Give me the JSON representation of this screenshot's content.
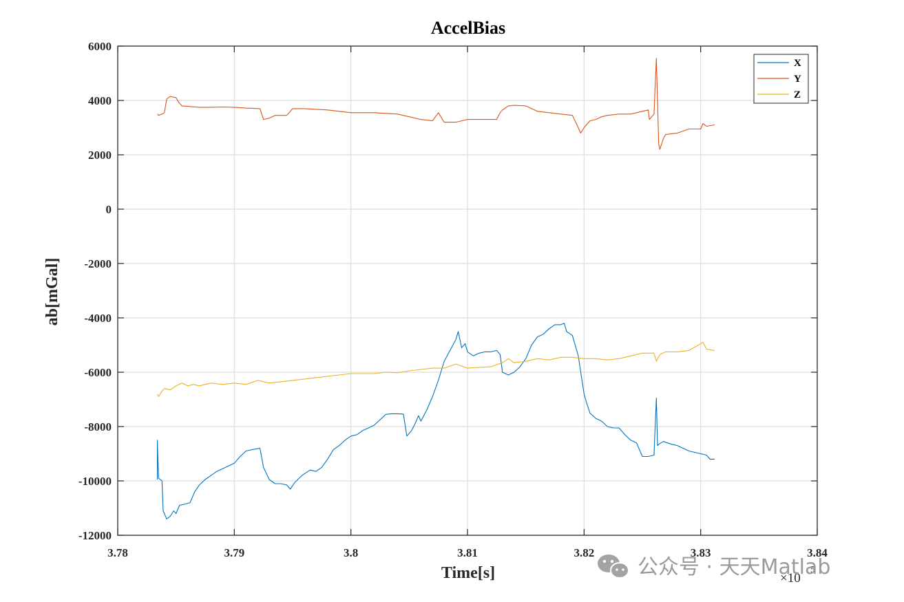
{
  "chart_data": {
    "type": "line",
    "title": "AccelBias",
    "xlabel": "Time[s]",
    "ylabel": "ab[mGal]",
    "x_exponent_label": "×10",
    "x_exponent_power": "5",
    "xlim": [
      3.78,
      3.84
    ],
    "ylim": [
      -12000,
      6000
    ],
    "xticks": [
      3.78,
      3.79,
      3.8,
      3.81,
      3.82,
      3.83,
      3.84
    ],
    "xtick_labels": [
      "3.78",
      "3.79",
      "3.8",
      "3.81",
      "3.82",
      "3.83",
      "3.84"
    ],
    "yticks": [
      6000,
      4000,
      2000,
      0,
      -2000,
      -4000,
      -6000,
      -8000,
      -10000,
      -12000
    ],
    "ytick_labels": [
      "6000",
      "4000",
      "2000",
      "0",
      "-2000",
      "-4000",
      "-6000",
      "-8000",
      "-10000",
      "-12000"
    ],
    "grid": true,
    "legend_position": "top-right",
    "series": [
      {
        "name": "X",
        "color": "#0072BD",
        "points": [
          [
            3.7834,
            -9950
          ],
          [
            3.7834,
            -8500
          ],
          [
            3.7835,
            -9900
          ],
          [
            3.7838,
            -10000
          ],
          [
            3.7839,
            -11100
          ],
          [
            3.7842,
            -11400
          ],
          [
            3.7845,
            -11300
          ],
          [
            3.7848,
            -11100
          ],
          [
            3.785,
            -11200
          ],
          [
            3.7853,
            -10900
          ],
          [
            3.7858,
            -10850
          ],
          [
            3.7862,
            -10800
          ],
          [
            3.7866,
            -10400
          ],
          [
            3.787,
            -10150
          ],
          [
            3.7875,
            -9950
          ],
          [
            3.788,
            -9800
          ],
          [
            3.7885,
            -9650
          ],
          [
            3.789,
            -9550
          ],
          [
            3.7895,
            -9450
          ],
          [
            3.79,
            -9350
          ],
          [
            3.7905,
            -9100
          ],
          [
            3.791,
            -8900
          ],
          [
            3.7915,
            -8850
          ],
          [
            3.7922,
            -8800
          ],
          [
            3.7925,
            -9500
          ],
          [
            3.793,
            -9950
          ],
          [
            3.7935,
            -10100
          ],
          [
            3.794,
            -10100
          ],
          [
            3.7945,
            -10150
          ],
          [
            3.7948,
            -10300
          ],
          [
            3.7952,
            -10050
          ],
          [
            3.7958,
            -9800
          ],
          [
            3.7965,
            -9600
          ],
          [
            3.797,
            -9650
          ],
          [
            3.7975,
            -9500
          ],
          [
            3.798,
            -9200
          ],
          [
            3.7985,
            -8850
          ],
          [
            3.799,
            -8700
          ],
          [
            3.7995,
            -8500
          ],
          [
            3.8,
            -8350
          ],
          [
            3.8005,
            -8300
          ],
          [
            3.801,
            -8150
          ],
          [
            3.8015,
            -8050
          ],
          [
            3.802,
            -7950
          ],
          [
            3.8025,
            -7750
          ],
          [
            3.803,
            -7550
          ],
          [
            3.8035,
            -7530
          ],
          [
            3.804,
            -7530
          ],
          [
            3.8045,
            -7540
          ],
          [
            3.8048,
            -8350
          ],
          [
            3.8052,
            -8150
          ],
          [
            3.8055,
            -7900
          ],
          [
            3.8058,
            -7600
          ],
          [
            3.806,
            -7800
          ],
          [
            3.8065,
            -7400
          ],
          [
            3.807,
            -6900
          ],
          [
            3.8075,
            -6300
          ],
          [
            3.808,
            -5600
          ],
          [
            3.8085,
            -5200
          ],
          [
            3.809,
            -4800
          ],
          [
            3.8092,
            -4500
          ],
          [
            3.8095,
            -5100
          ],
          [
            3.8098,
            -4950
          ],
          [
            3.81,
            -5250
          ],
          [
            3.8105,
            -5400
          ],
          [
            3.811,
            -5300
          ],
          [
            3.8115,
            -5250
          ],
          [
            3.812,
            -5250
          ],
          [
            3.8125,
            -5200
          ],
          [
            3.8128,
            -5350
          ],
          [
            3.813,
            -6000
          ],
          [
            3.8135,
            -6100
          ],
          [
            3.814,
            -6000
          ],
          [
            3.8145,
            -5800
          ],
          [
            3.815,
            -5500
          ],
          [
            3.8155,
            -5000
          ],
          [
            3.816,
            -4700
          ],
          [
            3.8165,
            -4600
          ],
          [
            3.817,
            -4400
          ],
          [
            3.8175,
            -4250
          ],
          [
            3.818,
            -4250
          ],
          [
            3.8183,
            -4200
          ],
          [
            3.8185,
            -4500
          ],
          [
            3.819,
            -4650
          ],
          [
            3.8195,
            -5400
          ],
          [
            3.82,
            -6800
          ],
          [
            3.8202,
            -7100
          ],
          [
            3.8205,
            -7500
          ],
          [
            3.821,
            -7700
          ],
          [
            3.8215,
            -7800
          ],
          [
            3.822,
            -8000
          ],
          [
            3.8225,
            -8050
          ],
          [
            3.823,
            -8050
          ],
          [
            3.8235,
            -8300
          ],
          [
            3.824,
            -8500
          ],
          [
            3.8245,
            -8600
          ],
          [
            3.825,
            -9100
          ],
          [
            3.8255,
            -9100
          ],
          [
            3.826,
            -9050
          ],
          [
            3.8262,
            -6950
          ],
          [
            3.8263,
            -8700
          ],
          [
            3.8264,
            -8650
          ],
          [
            3.8268,
            -8550
          ],
          [
            3.8275,
            -8650
          ],
          [
            3.828,
            -8700
          ],
          [
            3.8285,
            -8800
          ],
          [
            3.829,
            -8900
          ],
          [
            3.8295,
            -8950
          ],
          [
            3.83,
            -9000
          ],
          [
            3.8305,
            -9050
          ],
          [
            3.8308,
            -9200
          ],
          [
            3.8312,
            -9200
          ]
        ]
      },
      {
        "name": "Y",
        "color": "#D95319",
        "points": [
          [
            3.7834,
            3500
          ],
          [
            3.7835,
            3450
          ],
          [
            3.7838,
            3500
          ],
          [
            3.784,
            3550
          ],
          [
            3.7842,
            4050
          ],
          [
            3.7845,
            4150
          ],
          [
            3.785,
            4100
          ],
          [
            3.7852,
            3950
          ],
          [
            3.7855,
            3800
          ],
          [
            3.787,
            3750
          ],
          [
            3.788,
            3750
          ],
          [
            3.789,
            3760
          ],
          [
            3.79,
            3750
          ],
          [
            3.791,
            3720
          ],
          [
            3.7922,
            3700
          ],
          [
            3.7925,
            3300
          ],
          [
            3.793,
            3350
          ],
          [
            3.7935,
            3450
          ],
          [
            3.794,
            3450
          ],
          [
            3.7945,
            3450
          ],
          [
            3.795,
            3700
          ],
          [
            3.796,
            3700
          ],
          [
            3.798,
            3650
          ],
          [
            3.799,
            3600
          ],
          [
            3.8,
            3550
          ],
          [
            3.802,
            3550
          ],
          [
            3.804,
            3500
          ],
          [
            3.805,
            3400
          ],
          [
            3.806,
            3300
          ],
          [
            3.807,
            3250
          ],
          [
            3.8075,
            3550
          ],
          [
            3.808,
            3200
          ],
          [
            3.809,
            3200
          ],
          [
            3.8095,
            3250
          ],
          [
            3.81,
            3300
          ],
          [
            3.811,
            3300
          ],
          [
            3.812,
            3300
          ],
          [
            3.8125,
            3300
          ],
          [
            3.8128,
            3550
          ],
          [
            3.813,
            3650
          ],
          [
            3.8135,
            3800
          ],
          [
            3.814,
            3820
          ],
          [
            3.815,
            3800
          ],
          [
            3.816,
            3600
          ],
          [
            3.817,
            3550
          ],
          [
            3.818,
            3500
          ],
          [
            3.819,
            3450
          ],
          [
            3.8195,
            3000
          ],
          [
            3.8197,
            2800
          ],
          [
            3.82,
            3000
          ],
          [
            3.8205,
            3250
          ],
          [
            3.821,
            3300
          ],
          [
            3.8215,
            3400
          ],
          [
            3.822,
            3450
          ],
          [
            3.823,
            3500
          ],
          [
            3.824,
            3500
          ],
          [
            3.825,
            3600
          ],
          [
            3.8255,
            3650
          ],
          [
            3.8256,
            3300
          ],
          [
            3.826,
            3500
          ],
          [
            3.8262,
            5550
          ],
          [
            3.8263,
            4000
          ],
          [
            3.8264,
            2400
          ],
          [
            3.8265,
            2200
          ],
          [
            3.8268,
            2600
          ],
          [
            3.827,
            2750
          ],
          [
            3.828,
            2800
          ],
          [
            3.829,
            2950
          ],
          [
            3.83,
            2950
          ],
          [
            3.8302,
            3150
          ],
          [
            3.8305,
            3050
          ],
          [
            3.8312,
            3100
          ]
        ]
      },
      {
        "name": "Z",
        "color": "#EDB120",
        "points": [
          [
            3.7834,
            -6800
          ],
          [
            3.7835,
            -6900
          ],
          [
            3.7838,
            -6700
          ],
          [
            3.784,
            -6600
          ],
          [
            3.7845,
            -6650
          ],
          [
            3.785,
            -6500
          ],
          [
            3.7855,
            -6400
          ],
          [
            3.786,
            -6500
          ],
          [
            3.7865,
            -6450
          ],
          [
            3.787,
            -6500
          ],
          [
            3.7875,
            -6450
          ],
          [
            3.788,
            -6400
          ],
          [
            3.789,
            -6450
          ],
          [
            3.79,
            -6400
          ],
          [
            3.791,
            -6450
          ],
          [
            3.792,
            -6300
          ],
          [
            3.793,
            -6400
          ],
          [
            3.794,
            -6350
          ],
          [
            3.795,
            -6300
          ],
          [
            3.796,
            -6250
          ],
          [
            3.797,
            -6200
          ],
          [
            3.798,
            -6150
          ],
          [
            3.799,
            -6100
          ],
          [
            3.8,
            -6050
          ],
          [
            3.801,
            -6050
          ],
          [
            3.802,
            -6050
          ],
          [
            3.803,
            -6000
          ],
          [
            3.804,
            -6020
          ],
          [
            3.805,
            -5950
          ],
          [
            3.806,
            -5900
          ],
          [
            3.807,
            -5850
          ],
          [
            3.808,
            -5850
          ],
          [
            3.809,
            -5700
          ],
          [
            3.81,
            -5850
          ],
          [
            3.811,
            -5820
          ],
          [
            3.812,
            -5800
          ],
          [
            3.813,
            -5650
          ],
          [
            3.8135,
            -5500
          ],
          [
            3.814,
            -5650
          ],
          [
            3.815,
            -5600
          ],
          [
            3.816,
            -5500
          ],
          [
            3.817,
            -5550
          ],
          [
            3.818,
            -5450
          ],
          [
            3.819,
            -5450
          ],
          [
            3.82,
            -5500
          ],
          [
            3.821,
            -5500
          ],
          [
            3.822,
            -5550
          ],
          [
            3.823,
            -5500
          ],
          [
            3.824,
            -5400
          ],
          [
            3.825,
            -5300
          ],
          [
            3.826,
            -5300
          ],
          [
            3.8262,
            -5600
          ],
          [
            3.8265,
            -5350
          ],
          [
            3.827,
            -5250
          ],
          [
            3.828,
            -5250
          ],
          [
            3.829,
            -5200
          ],
          [
            3.8302,
            -4900
          ],
          [
            3.8305,
            -5150
          ],
          [
            3.8312,
            -5200
          ]
        ]
      }
    ]
  },
  "watermark": {
    "icon": "wechat-icon",
    "text": "公众号 · 天天Matlab"
  }
}
